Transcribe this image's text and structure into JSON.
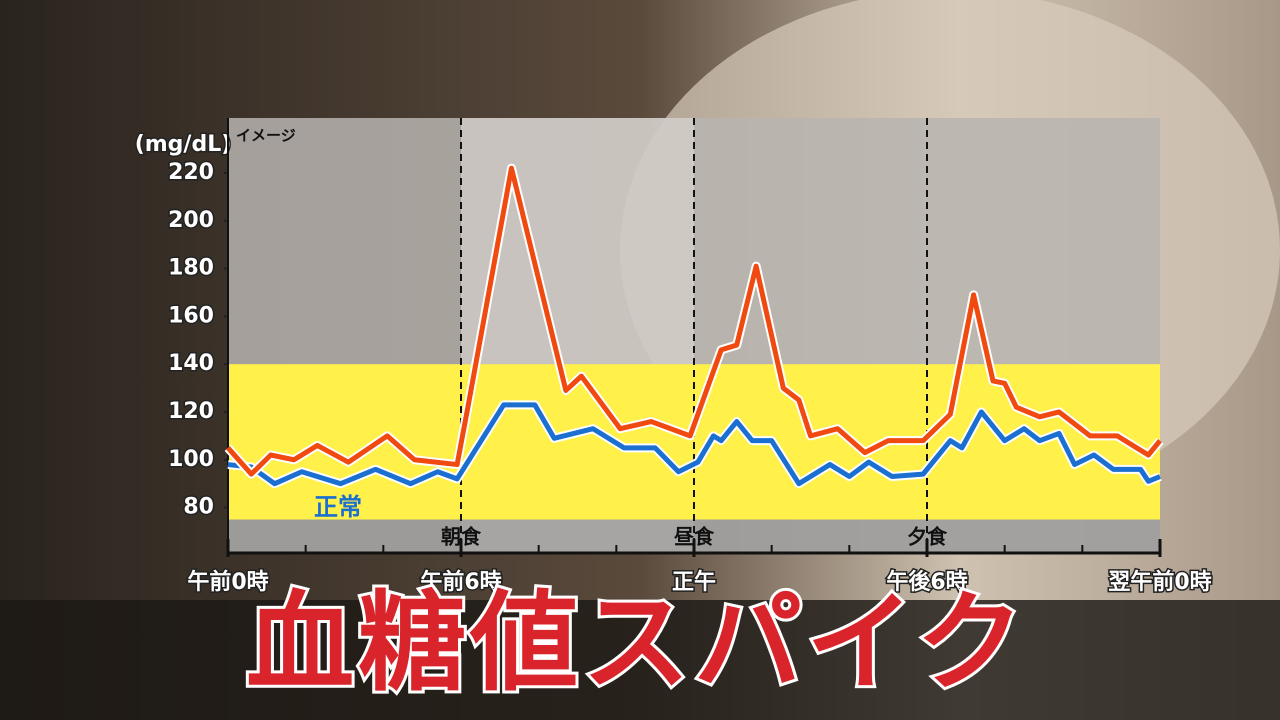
{
  "chart_data": {
    "type": "line",
    "title": "血糖値スパイク",
    "subtitle": "イメージ",
    "y_label": "(mg/dL)",
    "xlim": [
      0,
      24
    ],
    "ylim": [
      61,
      243
    ],
    "yticks": [
      80,
      100,
      120,
      140,
      160,
      180,
      200,
      220
    ],
    "xticks": [
      {
        "value": 0,
        "label": "午前0時"
      },
      {
        "value": 6,
        "label": "午前6時"
      },
      {
        "value": 12,
        "label": "正午"
      },
      {
        "value": 18,
        "label": "午後6時"
      },
      {
        "value": 24,
        "label": "翌午前0時"
      }
    ],
    "xminor": [
      2,
      4,
      8,
      10,
      14,
      16,
      20,
      22
    ],
    "band": {
      "range": [
        75,
        140
      ],
      "color": "#fff04a"
    },
    "meals": [
      {
        "x": 6,
        "label": "朝食"
      },
      {
        "x": 12,
        "label": "昼食"
      },
      {
        "x": 18,
        "label": "夕食"
      }
    ],
    "series": [
      {
        "name": "正常",
        "color": "#1a6fd0",
        "x": [
          0,
          0.6,
          1.2,
          1.9,
          2.9,
          3.8,
          4.7,
          5.4,
          5.9,
          7.1,
          7.9,
          8.4,
          9.4,
          10.2,
          11.0,
          11.6,
          12.1,
          12.5,
          12.7,
          13.1,
          13.5,
          14.0,
          14.7,
          15.5,
          16.0,
          16.5,
          17.1,
          17.9,
          18.6,
          18.9,
          19.4,
          20.0,
          20.5,
          20.9,
          21.4,
          21.8,
          22.3,
          22.8,
          23.5,
          23.7,
          24
        ],
        "values": [
          98,
          97,
          90,
          95,
          90,
          96,
          90,
          95,
          92,
          123,
          123,
          109,
          113,
          105,
          105,
          95,
          99,
          110,
          108,
          116,
          108,
          108,
          90,
          98,
          93,
          99,
          93,
          94,
          108,
          105,
          120,
          108,
          113,
          108,
          111,
          98,
          102,
          96,
          96,
          91,
          93
        ]
      },
      {
        "color": "#f04a10",
        "x": [
          0,
          0.6,
          1.1,
          1.7,
          2.3,
          3.1,
          4.1,
          4.8,
          5.9,
          6.2,
          7.3,
          8.7,
          9.1,
          10.1,
          10.9,
          11.9,
          12.7,
          13.1,
          13.6,
          14.3,
          14.7,
          15.0,
          15.7,
          16.4,
          17.0,
          17.9,
          18.6,
          19.2,
          19.7,
          20.0,
          20.3,
          20.9,
          21.4,
          22.2,
          22.9,
          23.4,
          23.7,
          24
        ],
        "values": [
          105,
          94,
          102,
          100,
          106,
          99,
          110,
          100,
          98,
          124,
          222,
          129,
          135,
          113,
          116,
          110,
          146,
          148,
          181,
          130,
          125,
          110,
          113,
          103,
          108,
          108,
          119,
          169,
          133,
          132,
          122,
          118,
          120,
          110,
          110,
          105,
          102,
          108
        ]
      }
    ]
  }
}
